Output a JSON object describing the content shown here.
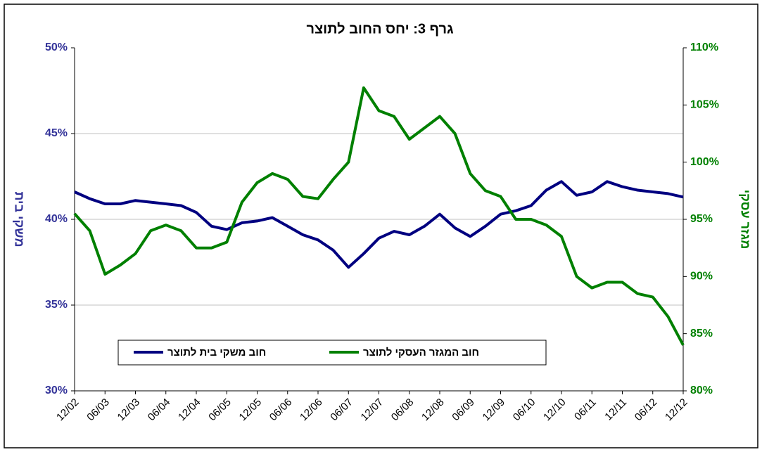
{
  "chart_data": {
    "type": "line",
    "title": "גרף 3: יחס החוב לתוצר",
    "y_label": "משקי בית",
    "y2_label": "מגזר עסקי",
    "categories": [
      "12/02",
      null,
      "06/03",
      null,
      "12/03",
      null,
      "06/04",
      null,
      "12/04",
      null,
      "06/05",
      null,
      "12/05",
      null,
      "06/06",
      null,
      "12/06",
      null,
      "06/07",
      null,
      "12/07",
      null,
      "06/08",
      null,
      "12/08",
      null,
      "06/09",
      null,
      "12/09",
      null,
      "06/10",
      null,
      "12/10",
      null,
      "06/11",
      null,
      "12/11",
      null,
      "06/12",
      null,
      "12/12"
    ],
    "series": [
      {
        "name": "חוב משקי בית לתוצר",
        "color": "#000080",
        "axis": "y",
        "values": [
          41.6,
          41.2,
          40.9,
          40.9,
          41.1,
          41.0,
          40.9,
          40.8,
          40.4,
          39.6,
          39.4,
          39.8,
          39.9,
          40.1,
          39.6,
          39.1,
          38.8,
          38.2,
          37.2,
          38.0,
          38.9,
          39.3,
          39.1,
          39.6,
          40.3,
          39.5,
          39.0,
          39.6,
          40.3,
          40.5,
          40.8,
          41.7,
          42.2,
          41.4,
          41.6,
          42.2,
          41.9,
          41.7,
          41.6,
          41.5,
          41.3
        ]
      },
      {
        "name": "חוב המגזר העסקי לתוצר",
        "color": "#008000",
        "axis": "y2",
        "values": [
          95.5,
          94.0,
          90.2,
          91.0,
          92.0,
          94.0,
          94.5,
          94.0,
          92.5,
          92.5,
          93.0,
          96.5,
          98.2,
          99.0,
          98.5,
          97.0,
          96.8,
          98.5,
          100.0,
          106.5,
          104.5,
          104.0,
          102.0,
          103.0,
          104.0,
          102.5,
          99.0,
          97.5,
          97.0,
          95.0,
          95.0,
          94.5,
          93.5,
          90.0,
          89.0,
          89.5,
          89.5,
          88.5,
          88.2,
          86.5,
          84.0
        ]
      }
    ],
    "ylim": [
      30,
      50
    ],
    "yticks": [
      {
        "value": 30,
        "label": "30%"
      },
      {
        "value": 35,
        "label": "35%"
      },
      {
        "value": 40,
        "label": "40%"
      },
      {
        "value": 45,
        "label": "45%"
      },
      {
        "value": 50,
        "label": "50%"
      }
    ],
    "y2lim": [
      80,
      110
    ],
    "y2ticks": [
      {
        "value": 80,
        "label": "80%"
      },
      {
        "value": 85,
        "label": "85%"
      },
      {
        "value": 90,
        "label": "90%"
      },
      {
        "value": 95,
        "label": "95%"
      },
      {
        "value": 100,
        "label": "100%"
      },
      {
        "value": 105,
        "label": "105%"
      },
      {
        "value": 110,
        "label": "110%"
      }
    ],
    "grid": true
  }
}
